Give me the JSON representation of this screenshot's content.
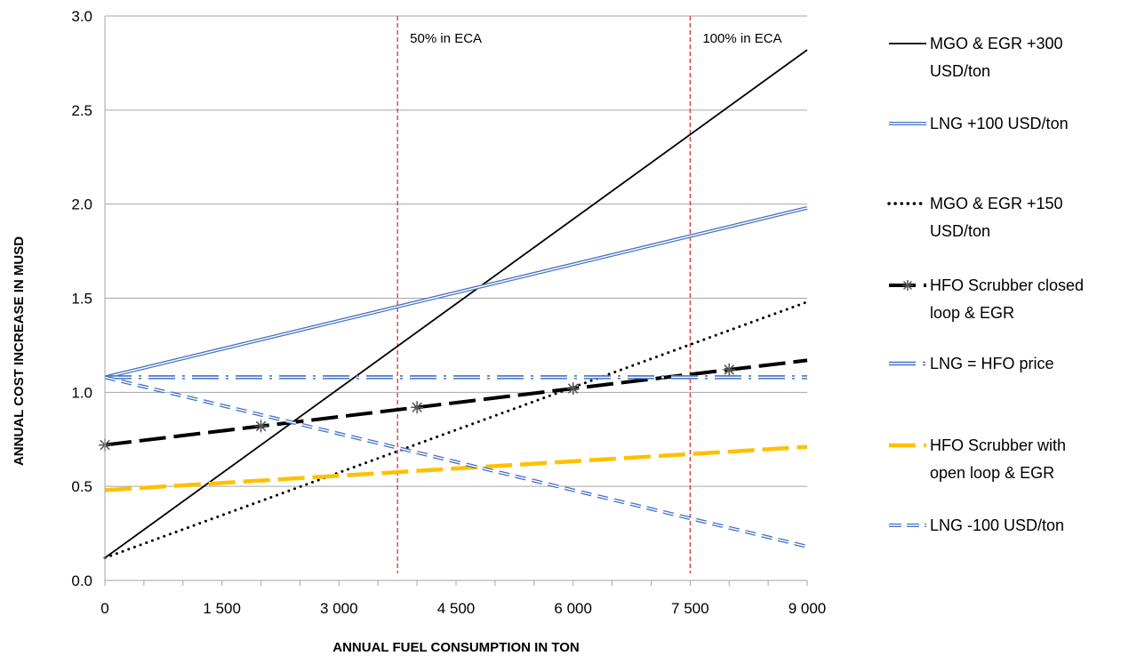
{
  "chart_data": {
    "type": "line",
    "title": "",
    "xlabel": "ANNUAL FUEL CONSUMPTION IN TON",
    "ylabel": "ANNUAL COST INCREASE IN MUSD",
    "xlim": [
      0,
      9000
    ],
    "ylim": [
      0,
      3.0
    ],
    "x_ticks": [
      0,
      1500,
      3000,
      4500,
      6000,
      7500,
      9000
    ],
    "x_tick_labels": [
      "0",
      "1 500",
      "3 000",
      "4 500",
      "6 000",
      "7 500",
      "9 000"
    ],
    "y_ticks": [
      0,
      0.5,
      1.0,
      1.5,
      2.0,
      2.5,
      3.0
    ],
    "y_tick_labels": [
      "0.0",
      "0.5",
      "1.0",
      "1.5",
      "2.0",
      "2.5",
      "3.0"
    ],
    "grid": "horizontal",
    "legend_position": "right",
    "reference_lines": [
      {
        "x": 3750,
        "label": "50% in ECA",
        "color": "#d62728"
      },
      {
        "x": 7500,
        "label": "100% in ECA",
        "color": "#d62728"
      }
    ],
    "series": [
      {
        "name": "MGO & EGR +300 USD/ton",
        "legend_lines": [
          "MGO & EGR +300",
          "USD/ton"
        ],
        "style": "solid-black",
        "color": "#000000",
        "x": [
          0,
          9000
        ],
        "y": [
          0.12,
          2.82
        ]
      },
      {
        "name": "LNG  +100 USD/ton",
        "legend_lines": [
          "LNG  +100 USD/ton"
        ],
        "style": "double-blue",
        "color": "#4472c4",
        "x": [
          0,
          9000
        ],
        "y": [
          1.08,
          1.98
        ]
      },
      {
        "name": "MGO & EGR +150 USD/ton",
        "legend_lines": [
          "MGO & EGR +150",
          "USD/ton"
        ],
        "style": "dotted-black",
        "color": "#000000",
        "x": [
          0,
          9000
        ],
        "y": [
          0.12,
          1.48
        ]
      },
      {
        "name": "HFO Scrubber closed loop & EGR",
        "legend_lines": [
          "HFO Scrubber closed",
          "loop & EGR"
        ],
        "style": "dashed-black-markers",
        "color": "#000000",
        "x": [
          0,
          2000,
          4000,
          6000,
          8000,
          9000
        ],
        "y": [
          0.72,
          0.82,
          0.92,
          1.02,
          1.12,
          1.17
        ],
        "marker_x": [
          0,
          2000,
          4000,
          6000,
          8000
        ]
      },
      {
        "name": "LNG = HFO price",
        "legend_lines": [
          "LNG = HFO price"
        ],
        "style": "dashdot-blue-double",
        "color": "#4472c4",
        "x": [
          0,
          9000
        ],
        "y": [
          1.08,
          1.08
        ]
      },
      {
        "name": "HFO Scrubber with open loop & EGR",
        "legend_lines": [
          "HFO Scrubber with",
          "open loop & EGR"
        ],
        "style": "dashed-yellow",
        "color": "#ffc000",
        "x": [
          0,
          9000
        ],
        "y": [
          0.48,
          0.71
        ]
      },
      {
        "name": "LNG  -100 USD/ton",
        "legend_lines": [
          "LNG  -100 USD/ton"
        ],
        "style": "dashed-blue-double",
        "color": "#4472c4",
        "x": [
          0,
          9000
        ],
        "y": [
          1.08,
          0.18
        ]
      }
    ]
  }
}
